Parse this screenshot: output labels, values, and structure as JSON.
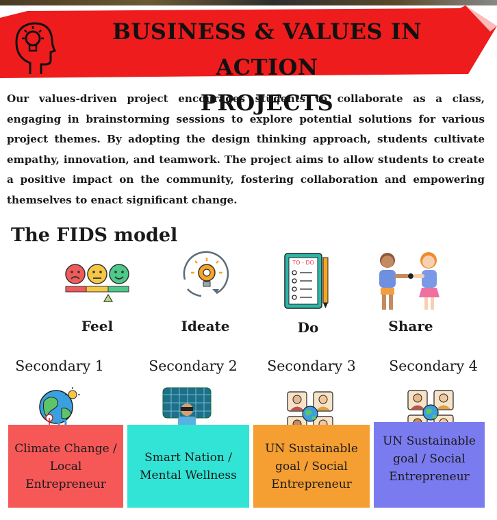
{
  "banner": {
    "title_line1": "BUSINESS & VALUES IN ACTION",
    "title_line2": "PROJECTS",
    "color": "#ee1c1c"
  },
  "intro": "Our values-driven project encourages students to collaborate as a class, engaging in brainstorming sessions to explore potential solutions for various project themes. By adopting the design thinking approach, students cultivate empathy, innovation, and teamwork. The project aims to allow students to create a positive impact on the community, fostering collaboration and empowering themselves to enact significant change.",
  "model": {
    "title": "The FIDS model",
    "steps": [
      {
        "label": "Feel",
        "icon": "emotion-faces-icon"
      },
      {
        "label": "Ideate",
        "icon": "lightbulb-gear-icon"
      },
      {
        "label": "Do",
        "icon": "todo-clipboard-icon"
      },
      {
        "label": "Share",
        "icon": "children-sharing-icon"
      }
    ]
  },
  "secondary": [
    {
      "label": "Secondary 1",
      "topic": "Climate Change / Local Entrepreneur",
      "color": "#f65858",
      "icon": "earth-climate-icon"
    },
    {
      "label": "Secondary 2",
      "topic": "Smart Nation / Mental Wellness",
      "color": "#32e4d6",
      "icon": "vr-person-icon"
    },
    {
      "label": "Secondary 3",
      "topic": "UN Sustainable goal / Social Entrepreneur",
      "color": "#f59e32",
      "icon": "global-team-icon"
    },
    {
      "label": "Secondary 4",
      "topic": "UN Sustainable goal / Social Entrepreneur",
      "color": "#7b7bf0",
      "icon": "global-team-icon"
    }
  ]
}
